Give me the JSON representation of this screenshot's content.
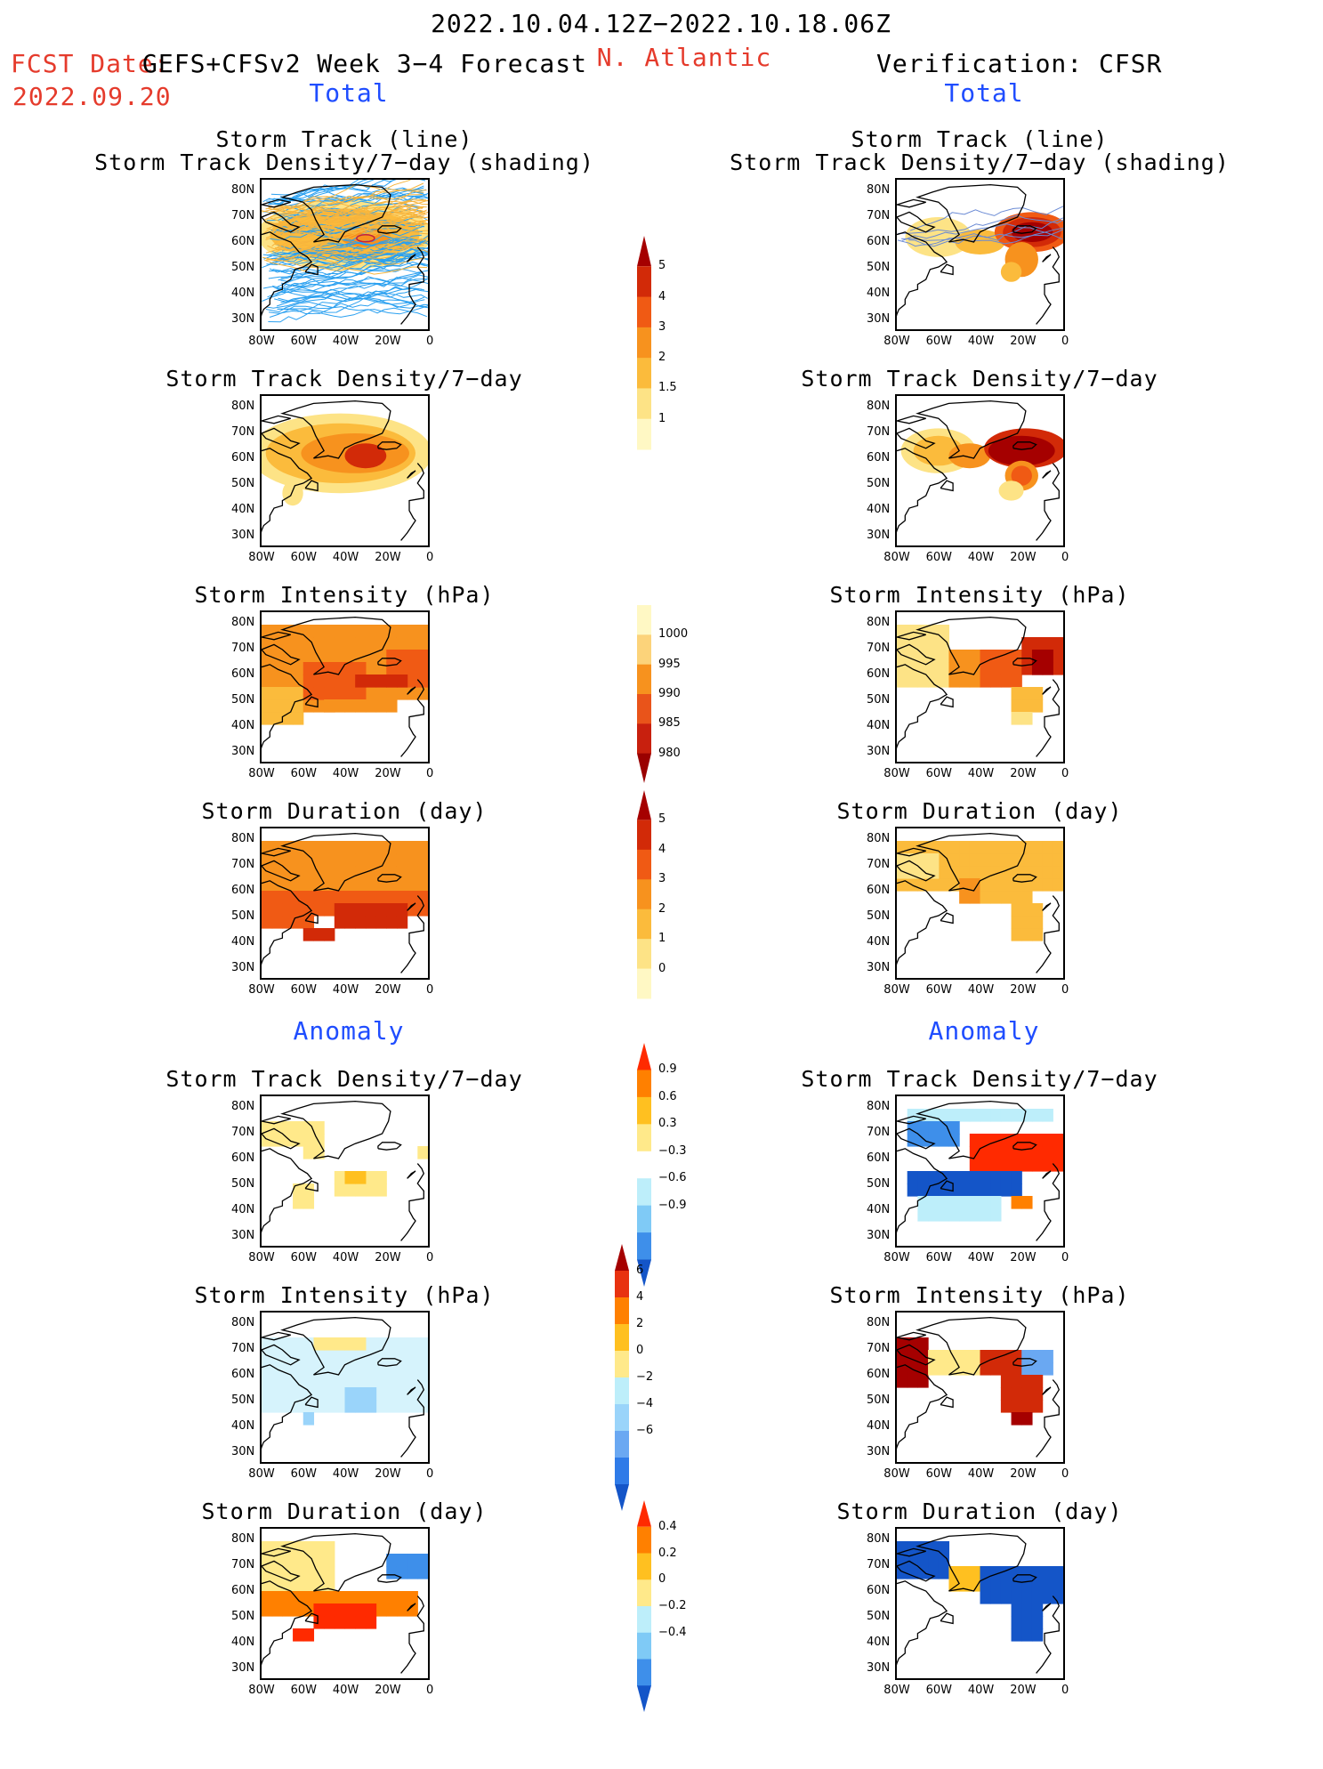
{
  "header": {
    "date_range": "2022.10.04.12Z−2022.10.18.06Z",
    "fcst_prefix": "FCST Date:",
    "fcst_model": "GEFS+CFSv2 Week 3−4 Forecast",
    "fcst_date": "2022.09.20",
    "region": "N. Atlantic",
    "verification": "Verification: CFSR"
  },
  "sections": {
    "total_left": "Total",
    "total_right": "Total",
    "anomaly_left": "Anomaly",
    "anomaly_right": "Anomaly"
  },
  "titles": {
    "track_line": "Storm Track (line)",
    "track_shading": "Storm Track Density/7−day (shading)",
    "density": "Storm Track Density/7−day",
    "intensity": "Storm Intensity (hPa)",
    "duration": "Storm Duration (day)"
  },
  "axes": {
    "lat_labels": [
      "80N",
      "70N",
      "60N",
      "50N",
      "40N",
      "30N"
    ],
    "lon_labels": [
      "80W",
      "60W",
      "40W",
      "20W",
      "0"
    ]
  },
  "colorbars": {
    "density_total": {
      "labels": [
        "5",
        "4",
        "3",
        "2",
        "1.5",
        "1"
      ],
      "colors": [
        "#a50000",
        "#d22a08",
        "#f05a14",
        "#f7921e",
        "#fbbb3c",
        "#fde386",
        "#fff8c4"
      ]
    },
    "intensity_total": {
      "labels": [
        "1000",
        "995",
        "990",
        "985",
        "980"
      ],
      "colors": [
        "#fff8c4",
        "#fcd37a",
        "#f7921e",
        "#e9541a",
        "#c8200e",
        "#9a0000"
      ]
    },
    "duration_total": {
      "labels": [
        "5",
        "4",
        "3",
        "2",
        "1",
        "0"
      ],
      "colors": [
        "#a50000",
        "#d22a08",
        "#f05a14",
        "#f7921e",
        "#fbbb3c",
        "#fde386",
        "#fff8c4"
      ]
    },
    "density_anom": {
      "labels": [
        "0.9",
        "0.6",
        "0.3",
        "−0.3",
        "−0.6",
        "−0.9"
      ],
      "colors": [
        "#ff2a00",
        "#ff8000",
        "#ffc020",
        "#ffe98a",
        "#ffffff",
        "#bdeefa",
        "#7fcaf6",
        "#3e8fea",
        "#1455c8"
      ]
    },
    "intensity_anom": {
      "labels": [
        "6",
        "4",
        "2",
        "0",
        "−2",
        "−4",
        "−6"
      ],
      "colors": [
        "#a50000",
        "#e83210",
        "#ff8000",
        "#ffc020",
        "#ffe98a",
        "#bdeefa",
        "#9ad4fa",
        "#6aa8f2",
        "#2f7be8",
        "#1455c8"
      ]
    },
    "duration_anom": {
      "labels": [
        "0.4",
        "0.2",
        "0",
        "−0.2",
        "−0.4"
      ],
      "colors": [
        "#ff2a00",
        "#ff8000",
        "#ffc020",
        "#ffe98a",
        "#bdeefa",
        "#7fcaf6",
        "#3e8fea",
        "#1455c8"
      ]
    }
  },
  "chart_data": [
    {
      "type": "heatmap",
      "panel": "forecast-total-track",
      "title": "Storm Track (line) / Storm Track Density/7−day (shading)",
      "xlim": [
        -80,
        0
      ],
      "ylim": [
        25,
        85
      ],
      "note": "shading: orange-yellow density band 50N–75N with maximum near 60N 30W"
    },
    {
      "type": "heatmap",
      "panel": "verification-total-track",
      "title": "Storm Track (line) / Storm Track Density/7−day (shading)",
      "xlim": [
        -80,
        0
      ],
      "ylim": [
        25,
        85
      ]
    },
    {
      "type": "heatmap",
      "panel": "forecast-total-density",
      "title": "Storm Track Density/7−day",
      "units": "per 7 day",
      "max_value": 4,
      "max_location": [
        -30,
        61
      ]
    },
    {
      "type": "heatmap",
      "panel": "verification-total-density",
      "title": "Storm Track Density/7−day",
      "max_value": 5,
      "max_location": [
        -25,
        63
      ]
    },
    {
      "type": "heatmap",
      "panel": "forecast-total-intensity",
      "title": "Storm Intensity (hPa)",
      "min_value": 985
    },
    {
      "type": "heatmap",
      "panel": "verification-total-intensity",
      "title": "Storm Intensity (hPa)",
      "min_value": 980
    },
    {
      "type": "heatmap",
      "panel": "forecast-total-duration",
      "title": "Storm Duration (day)",
      "max_value": 5
    },
    {
      "type": "heatmap",
      "panel": "verification-total-duration",
      "title": "Storm Duration (day)",
      "max_value": 3
    },
    {
      "type": "heatmap",
      "panel": "forecast-anom-density",
      "title": "Storm Track Density/7−day",
      "max_value": 0.6
    },
    {
      "type": "heatmap",
      "panel": "verification-anom-density",
      "title": "Storm Track Density/7−day",
      "range": [
        -0.9,
        0.9
      ]
    },
    {
      "type": "heatmap",
      "panel": "forecast-anom-intensity",
      "title": "Storm Intensity (hPa)",
      "range": [
        -4,
        2
      ]
    },
    {
      "type": "heatmap",
      "panel": "verification-anom-intensity",
      "title": "Storm Intensity (hPa)",
      "range": [
        -4,
        6
      ]
    },
    {
      "type": "heatmap",
      "panel": "forecast-anom-duration",
      "title": "Storm Duration (day)",
      "range": [
        -0.4,
        0.4
      ]
    },
    {
      "type": "heatmap",
      "panel": "verification-anom-duration",
      "title": "Storm Duration (day)",
      "range": [
        -0.4,
        0.2
      ]
    }
  ]
}
